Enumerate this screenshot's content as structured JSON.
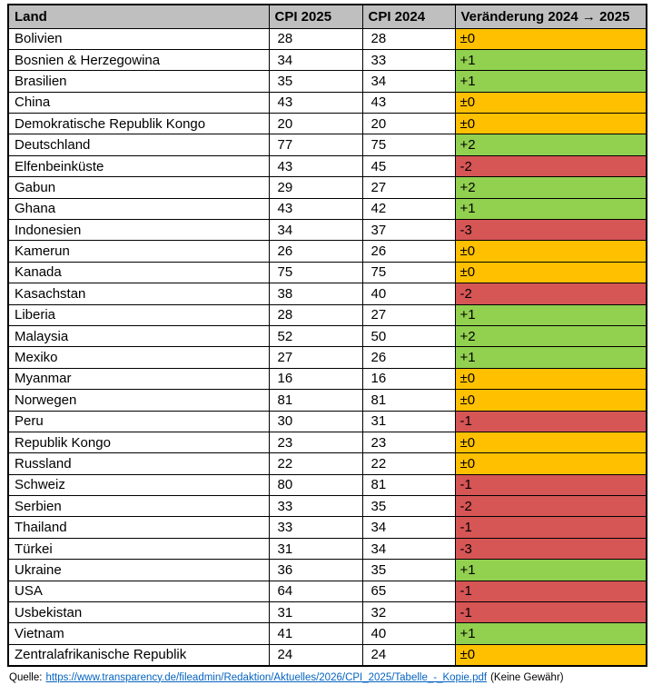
{
  "table": {
    "headers": [
      "Land",
      "CPI 2025",
      "CPI 2024",
      "Veränderung 2024 → 2025"
    ],
    "rows": [
      {
        "land": "Bolivien",
        "cpi_2025": "28",
        "cpi_2024": "28",
        "change": "±0",
        "trend": "neutral"
      },
      {
        "land": "Bosnien & Herzegowina",
        "cpi_2025": "34",
        "cpi_2024": "33",
        "change": "+1",
        "trend": "up"
      },
      {
        "land": "Brasilien",
        "cpi_2025": "35",
        "cpi_2024": "34",
        "change": "+1",
        "trend": "up"
      },
      {
        "land": "China",
        "cpi_2025": "43",
        "cpi_2024": "43",
        "change": "±0",
        "trend": "neutral"
      },
      {
        "land": "Demokratische Republik Kongo",
        "cpi_2025": "20",
        "cpi_2024": "20",
        "change": "±0",
        "trend": "neutral"
      },
      {
        "land": "Deutschland",
        "cpi_2025": "77",
        "cpi_2024": "75",
        "change": "+2",
        "trend": "up"
      },
      {
        "land": "Elfenbeinküste",
        "cpi_2025": "43",
        "cpi_2024": "45",
        "change": "-2",
        "trend": "down"
      },
      {
        "land": "Gabun",
        "cpi_2025": "29",
        "cpi_2024": "27",
        "change": "+2",
        "trend": "up"
      },
      {
        "land": "Ghana",
        "cpi_2025": "43",
        "cpi_2024": "42",
        "change": "+1",
        "trend": "up"
      },
      {
        "land": "Indonesien",
        "cpi_2025": "34",
        "cpi_2024": "37",
        "change": "-3",
        "trend": "down"
      },
      {
        "land": "Kamerun",
        "cpi_2025": "26",
        "cpi_2024": "26",
        "change": "±0",
        "trend": "neutral"
      },
      {
        "land": "Kanada",
        "cpi_2025": "75",
        "cpi_2024": "75",
        "change": "±0",
        "trend": "neutral"
      },
      {
        "land": "Kasachstan",
        "cpi_2025": "38",
        "cpi_2024": "40",
        "change": "-2",
        "trend": "down"
      },
      {
        "land": "Liberia",
        "cpi_2025": "28",
        "cpi_2024": "27",
        "change": "+1",
        "trend": "up"
      },
      {
        "land": "Malaysia",
        "cpi_2025": "52",
        "cpi_2024": "50",
        "change": "+2",
        "trend": "up"
      },
      {
        "land": "Mexiko",
        "cpi_2025": "27",
        "cpi_2024": "26",
        "change": "+1",
        "trend": "up"
      },
      {
        "land": "Myanmar",
        "cpi_2025": "16",
        "cpi_2024": "16",
        "change": "±0",
        "trend": "neutral"
      },
      {
        "land": "Norwegen",
        "cpi_2025": "81",
        "cpi_2024": "81",
        "change": "±0",
        "trend": "neutral"
      },
      {
        "land": "Peru",
        "cpi_2025": "30",
        "cpi_2024": "31",
        "change": "-1",
        "trend": "down"
      },
      {
        "land": "Republik Kongo",
        "cpi_2025": "23",
        "cpi_2024": "23",
        "change": "±0",
        "trend": "neutral"
      },
      {
        "land": "Russland",
        "cpi_2025": "22",
        "cpi_2024": "22",
        "change": "±0",
        "trend": "neutral"
      },
      {
        "land": "Schweiz",
        "cpi_2025": "80",
        "cpi_2024": "81",
        "change": "-1",
        "trend": "down"
      },
      {
        "land": "Serbien",
        "cpi_2025": "33",
        "cpi_2024": "35",
        "change": "-2",
        "trend": "down"
      },
      {
        "land": "Thailand",
        "cpi_2025": "33",
        "cpi_2024": "34",
        "change": "-1",
        "trend": "down"
      },
      {
        "land": "Türkei",
        "cpi_2025": "31",
        "cpi_2024": "34",
        "change": "-3",
        "trend": "down"
      },
      {
        "land": "Ukraine",
        "cpi_2025": "36",
        "cpi_2024": "35",
        "change": "+1",
        "trend": "up"
      },
      {
        "land": "USA",
        "cpi_2025": "64",
        "cpi_2024": "65",
        "change": "-1",
        "trend": "down"
      },
      {
        "land": "Usbekistan",
        "cpi_2025": "31",
        "cpi_2024": "32",
        "change": "-1",
        "trend": "down"
      },
      {
        "land": "Vietnam",
        "cpi_2025": "41",
        "cpi_2024": "40",
        "change": "+1",
        "trend": "up"
      },
      {
        "land": "Zentralafrikanische Republik",
        "cpi_2025": "24",
        "cpi_2024": "24",
        "change": "±0",
        "trend": "neutral"
      }
    ]
  },
  "colors": {
    "neutral": "#FFC000",
    "up": "#92D050",
    "down": "#D65555",
    "header_bg": "#BFBFBF",
    "link": "#0563C1"
  },
  "footer": {
    "label": "Quelle:",
    "link_text": "https://www.transparency.de/fileadmin/Redaktion/Aktuelles/2026/CPI_2025/Tabelle_-_Kopie.pdf",
    "note": "(Keine Gewähr)"
  }
}
